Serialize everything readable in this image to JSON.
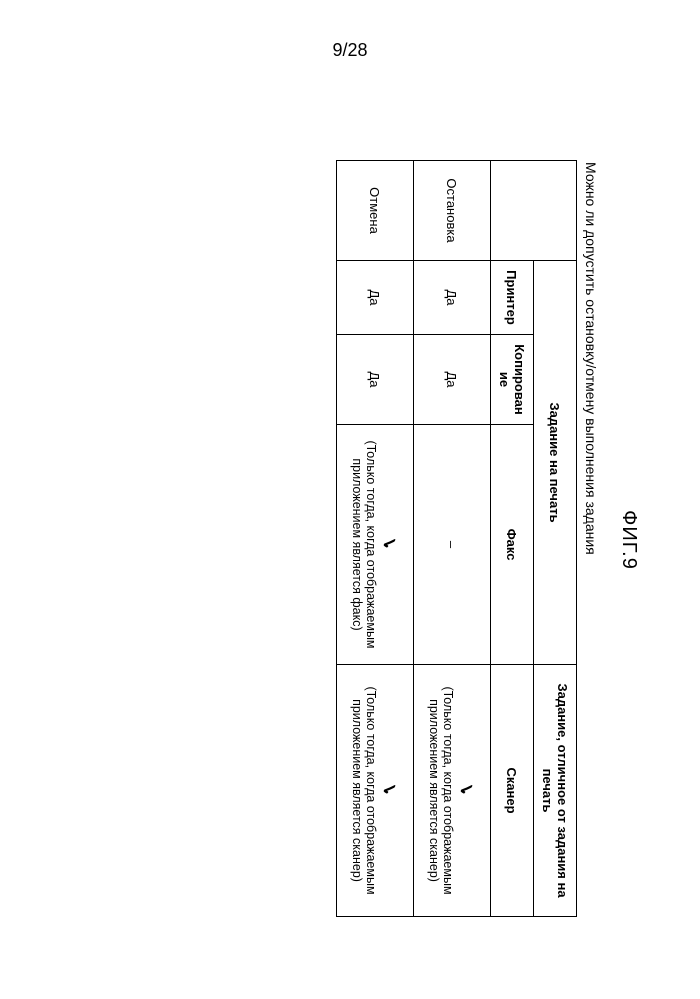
{
  "page_number": "9/28",
  "figure_label": "ФИГ.9",
  "caption": "Можно ли допустить остановку/отмену выполнения задания",
  "table": {
    "group_headers": {
      "print_job": "Задание на печать",
      "non_print_job": "Задание, отличное от задания на печать"
    },
    "col_headers": {
      "printer": "Принтер",
      "copy": "Копирование",
      "fax": "Факс",
      "scanner": "Сканер"
    },
    "row_headers": {
      "stop": "Остановка",
      "cancel": "Отмена"
    },
    "cells": {
      "stop_printer": "Да",
      "stop_copy": "Да",
      "stop_fax": "–",
      "stop_scanner_note": "(Только тогда, когда отображаемым приложением является сканер)",
      "cancel_printer": "Да",
      "cancel_copy": "Да",
      "cancel_fax_note": "(Только тогда, когда отображаемым приложением является факс)",
      "cancel_scanner_note": "(Только тогда, когда отображаемым приложением является сканер)"
    },
    "tick_glyph": "✓"
  },
  "style": {
    "border_color": "#000000",
    "background": "#ffffff",
    "font_family": "Arial",
    "title_fontsize_pt": 15,
    "body_fontsize_pt": 10
  }
}
